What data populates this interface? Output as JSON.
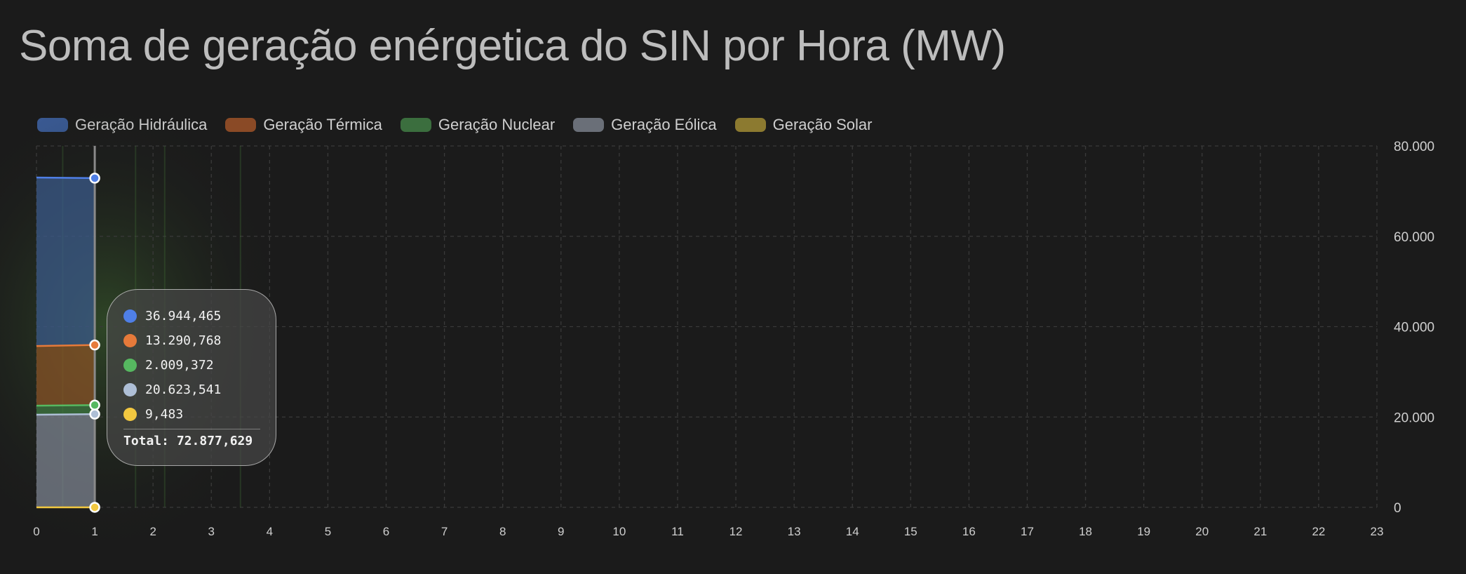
{
  "page": {
    "title": "Soma de geração enérgetica do SIN por Hora (MW)"
  },
  "legend": [
    {
      "label": "Geração Hidráulica",
      "color": "#3a5a94"
    },
    {
      "label": "Geração Térmica",
      "color": "#8a4a26"
    },
    {
      "label": "Geração Nuclear",
      "color": "#3b6e3e"
    },
    {
      "label": "Geração Eólica",
      "color": "#6a6f78"
    },
    {
      "label": "Geração Solar",
      "color": "#8c7a30"
    }
  ],
  "tooltip": {
    "rows": [
      {
        "value": "36.944,465",
        "color": "#4f7fe6"
      },
      {
        "value": "13.290,768",
        "color": "#e67a3a"
      },
      {
        "value": "2.009,372",
        "color": "#56b860"
      },
      {
        "value": "20.623,541",
        "color": "#aebfd6"
      },
      {
        "value": "9,483",
        "color": "#f2c840"
      }
    ],
    "total": "Total: 72.877,629"
  },
  "chart_data": {
    "type": "area",
    "stacked": true,
    "x": [
      0,
      1
    ],
    "x_ticks": [
      "0",
      "1",
      "2",
      "3",
      "4",
      "5",
      "6",
      "7",
      "8",
      "9",
      "10",
      "11",
      "12",
      "13",
      "14",
      "15",
      "16",
      "17",
      "18",
      "19",
      "20",
      "21",
      "22",
      "23"
    ],
    "xlim": [
      0,
      23
    ],
    "ylim": [
      0,
      80000
    ],
    "y_ticks": [
      "0",
      "20.000",
      "40.000",
      "60.000",
      "80.000"
    ],
    "y_tick_values": [
      0,
      20000,
      40000,
      60000,
      80000
    ],
    "y_axis_side": "right",
    "grid": true,
    "legend_position": "top-left",
    "hover_x": 1,
    "series": [
      {
        "name": "Geração Solar",
        "values": [
          9,
          9.483
        ],
        "line": "#f2c840",
        "fill": "#f2c840"
      },
      {
        "name": "Geração Eólica",
        "values": [
          20500,
          20623.541
        ],
        "line": "#aebfd6",
        "fill": "#7f8794"
      },
      {
        "name": "Geração Nuclear",
        "values": [
          2000,
          2009.372
        ],
        "line": "#56b860",
        "fill": "#3f7a43"
      },
      {
        "name": "Geração Térmica",
        "values": [
          13200,
          13290.768
        ],
        "line": "#e67a3a",
        "fill": "#8c5427"
      },
      {
        "name": "Geração Hidráulica",
        "values": [
          37300,
          36944.465
        ],
        "line": "#4f7fe6",
        "fill": "#3b5c8e"
      }
    ]
  }
}
